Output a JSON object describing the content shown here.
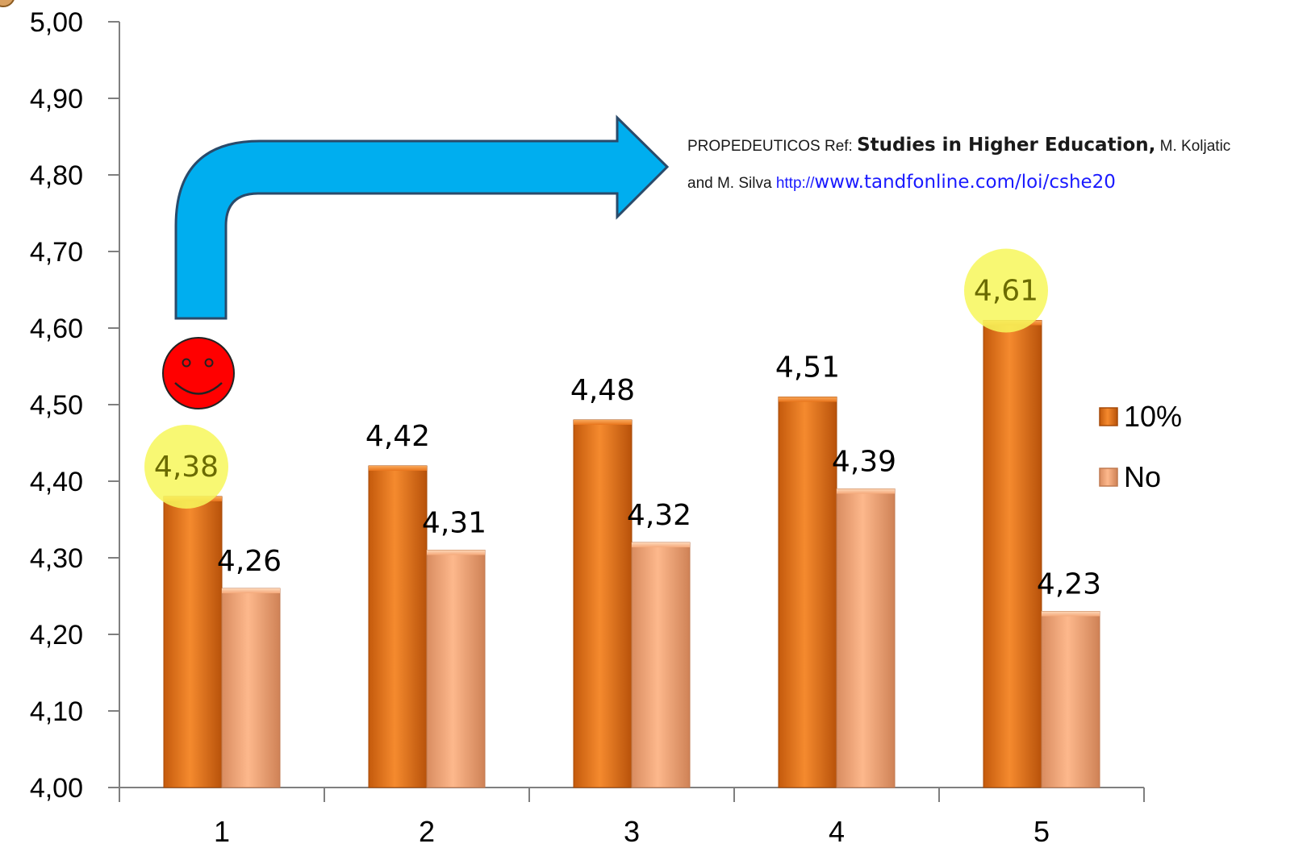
{
  "colors": {
    "series_10": "#e8741a",
    "series_no": "#f5a97a",
    "highlight": "#f7f75a",
    "arrow": "#00aeef",
    "smiley": "#ff0000",
    "axis": "#7f7f7f"
  },
  "reference": {
    "prefix": "PROPEDEUTICOS Ref: ",
    "journal": "Studies in Higher Education,",
    "authors_1": " M. Koljatic",
    "authors_2": "and M. Silva ",
    "link_1": "http://",
    "link_2": "www.tandfonline.com/loi/cshe20"
  },
  "chart_data": {
    "type": "bar",
    "categories": [
      "1",
      "2",
      "3",
      "4",
      "5"
    ],
    "series": [
      {
        "name": "10%",
        "values": [
          4.38,
          4.42,
          4.48,
          4.51,
          4.61
        ],
        "labels": [
          "4,38",
          "4,42",
          "4,48",
          "4,51",
          "4,61"
        ]
      },
      {
        "name": "No",
        "values": [
          4.26,
          4.31,
          4.32,
          4.39,
          4.23
        ],
        "labels": [
          "4,26",
          "4,31",
          "4,32",
          "4,39",
          "4,23"
        ]
      }
    ],
    "highlighted": [
      "4,38",
      "4,61"
    ],
    "ylim": [
      4.0,
      5.0
    ],
    "yticks": [
      "4,00",
      "4,10",
      "4,20",
      "4,30",
      "4,40",
      "4,50",
      "4,60",
      "4,70",
      "4,80",
      "4,90",
      "5,00"
    ],
    "legend_position": "right",
    "grid": false,
    "title": "",
    "xlabel": "",
    "ylabel": ""
  }
}
